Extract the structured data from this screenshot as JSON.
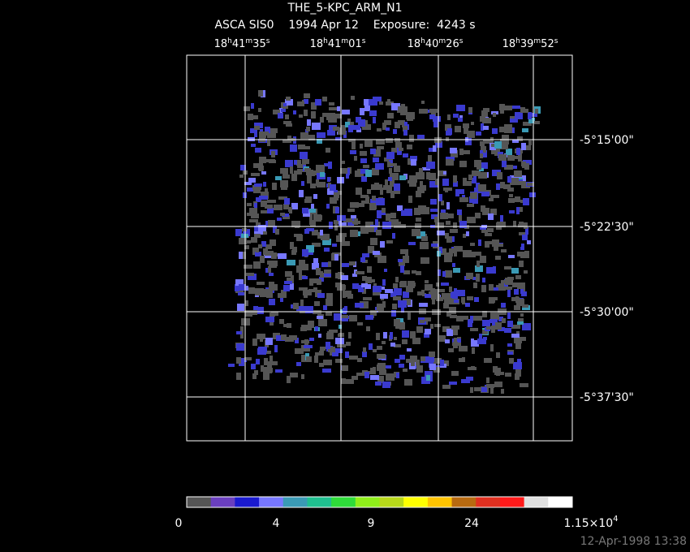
{
  "title": "THE_5-KPC_ARM_N1",
  "subtitle": "ASCA SIS0    1994 Apr 12    Exposure:  4243 s",
  "ra_labels": [
    [
      "18",
      "h",
      "41",
      "m",
      "35",
      "s"
    ],
    [
      "18",
      "h",
      "41",
      "m",
      "01",
      "s"
    ],
    [
      "18",
      "h",
      "40",
      "m",
      "26",
      "s"
    ],
    [
      "18",
      "h",
      "39",
      "m",
      "52",
      "s"
    ]
  ],
  "dec_labels": [
    "-5°15'00\"",
    "-5°22'30\"",
    "-5°30'00\"",
    "-5°37'30\""
  ],
  "colorbar": {
    "colors": [
      "#555555",
      "#6a3fbf",
      "#1a1acf",
      "#7777ff",
      "#3a9ab5",
      "#1fbf8f",
      "#2fdc3a",
      "#8fef1a",
      "#b8d81a",
      "#ffff00",
      "#ffc400",
      "#b86a10",
      "#e03020",
      "#ff1a1a",
      "#e0e0e0",
      "#ffffff"
    ],
    "labels": [
      "0",
      "4",
      "9",
      "24"
    ],
    "max_label": {
      "base": "1.15×10",
      "exp": "4"
    }
  },
  "timestamp": "12-Apr-1998 13:38"
}
